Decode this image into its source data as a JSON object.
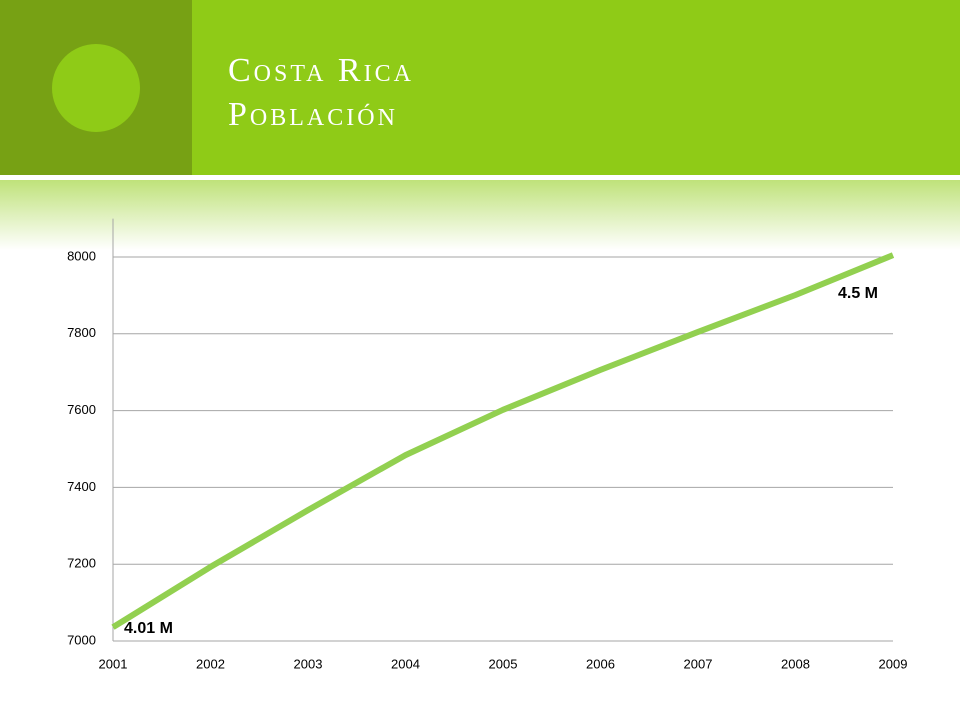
{
  "chart_data": {
    "type": "line",
    "title_lines": [
      "Costa Rica",
      "Población"
    ],
    "x": [
      2001,
      2002,
      2003,
      2004,
      2005,
      2006,
      2007,
      2008,
      2009
    ],
    "series": [
      {
        "name": "Población",
        "color": "#92d050",
        "values": [
          7036,
          7193,
          7341,
          7484,
          7602,
          7706,
          7805,
          7901,
          8005
        ]
      }
    ],
    "xlim": [
      2001,
      2009
    ],
    "xticks": [
      2001,
      2002,
      2003,
      2004,
      2005,
      2006,
      2007,
      2008,
      2009
    ],
    "ylim": [
      7000,
      8100
    ],
    "yticks": [
      7000,
      7200,
      7400,
      7600,
      7800,
      8000
    ],
    "grid": true,
    "annotations": [
      "4.01 M",
      "4.5 M"
    ]
  }
}
